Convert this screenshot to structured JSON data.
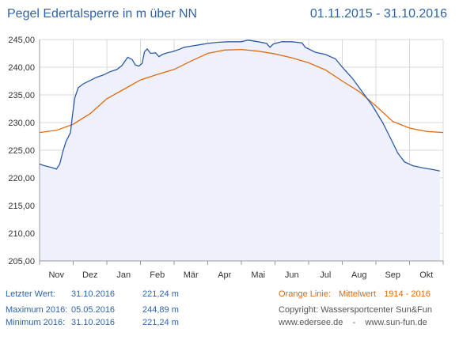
{
  "header": {
    "title": "Pegel Edertalsperre in m über NN",
    "date_range": "01.11.2015 - 31.10.2016"
  },
  "stats": {
    "last": {
      "label": "Letzter Wert:",
      "date": "31.10.2016",
      "value": "221,24 m"
    },
    "max": {
      "label": "Maximum 2016:",
      "date": "05.05.2016",
      "value": "244,89 m"
    },
    "min": {
      "label": "Minimum  2016:",
      "date": "31.10.2016",
      "value": "221,24 m"
    }
  },
  "legend": {
    "line_label": "Orange Linie:",
    "series_label": "Mittelwert",
    "period": "1914 - 2016"
  },
  "footer": {
    "copyright": "Copyright: Wassersportcenter Sun&Fun",
    "websites": "www.edersee.de    -    www.sun-fun.de"
  },
  "colors": {
    "title": "#2f63a8",
    "level_line": "#2a5aa8",
    "level_fill": "#eef1fb",
    "mean_line": "#e06a10",
    "grid": "#d8d8d8"
  },
  "chart_data": {
    "type": "line",
    "categories": [
      "Nov",
      "Dez",
      "Jan",
      "Feb",
      "Mär",
      "Apr",
      "Mai",
      "Jun",
      "Jul",
      "Aug",
      "Sep",
      "Okt"
    ],
    "ytick_labels": [
      "205,00",
      "210,00",
      "215,00",
      "220,00",
      "225,00",
      "230,00",
      "235,00",
      "240,00",
      "245,00"
    ],
    "ylim": [
      205,
      245
    ],
    "xlim": [
      0,
      12
    ],
    "grid": true,
    "series": [
      {
        "name": "",
        "values": [
          [
            0.0,
            222.5
          ],
          [
            0.15,
            222.2
          ],
          [
            0.35,
            221.9
          ],
          [
            0.5,
            221.6
          ],
          [
            0.6,
            222.5
          ],
          [
            0.68,
            224.5
          ],
          [
            0.78,
            226.5
          ],
          [
            0.92,
            228.2
          ],
          [
            0.98,
            231.5
          ],
          [
            1.05,
            234.5
          ],
          [
            1.15,
            236.3
          ],
          [
            1.3,
            237.0
          ],
          [
            1.5,
            237.6
          ],
          [
            1.7,
            238.2
          ],
          [
            1.9,
            238.6
          ],
          [
            2.1,
            239.2
          ],
          [
            2.3,
            239.6
          ],
          [
            2.45,
            240.3
          ],
          [
            2.55,
            241.2
          ],
          [
            2.62,
            241.8
          ],
          [
            2.75,
            241.4
          ],
          [
            2.85,
            240.4
          ],
          [
            2.95,
            240.2
          ],
          [
            3.05,
            240.7
          ],
          [
            3.12,
            242.8
          ],
          [
            3.2,
            243.3
          ],
          [
            3.3,
            242.5
          ],
          [
            3.45,
            242.6
          ],
          [
            3.55,
            241.9
          ],
          [
            3.65,
            242.3
          ],
          [
            3.8,
            242.6
          ],
          [
            3.95,
            242.8
          ],
          [
            4.1,
            243.1
          ],
          [
            4.3,
            243.6
          ],
          [
            4.5,
            243.8
          ],
          [
            4.8,
            244.1
          ],
          [
            5.0,
            244.3
          ],
          [
            5.3,
            244.5
          ],
          [
            5.6,
            244.6
          ],
          [
            6.0,
            244.6
          ],
          [
            6.2,
            244.89
          ],
          [
            6.5,
            244.6
          ],
          [
            6.75,
            244.3
          ],
          [
            6.85,
            243.6
          ],
          [
            6.95,
            244.2
          ],
          [
            7.2,
            244.6
          ],
          [
            7.5,
            244.6
          ],
          [
            7.8,
            244.4
          ],
          [
            7.9,
            243.6
          ],
          [
            8.2,
            242.7
          ],
          [
            8.5,
            242.3
          ],
          [
            8.8,
            241.5
          ],
          [
            9.0,
            240.0
          ],
          [
            9.3,
            238.0
          ],
          [
            9.6,
            235.5
          ],
          [
            9.9,
            233.0
          ],
          [
            10.2,
            230.0
          ],
          [
            10.45,
            227.0
          ],
          [
            10.65,
            224.5
          ],
          [
            10.85,
            222.9
          ],
          [
            11.1,
            222.2
          ],
          [
            11.4,
            221.8
          ],
          [
            11.7,
            221.5
          ],
          [
            11.9,
            221.24
          ]
        ]
      },
      {
        "name": "Mittelwert",
        "values": [
          [
            0.0,
            228.2
          ],
          [
            0.5,
            228.6
          ],
          [
            1.0,
            229.7
          ],
          [
            1.5,
            231.6
          ],
          [
            2.0,
            234.3
          ],
          [
            2.5,
            236.0
          ],
          [
            3.0,
            237.7
          ],
          [
            3.5,
            238.7
          ],
          [
            4.0,
            239.6
          ],
          [
            4.5,
            241.1
          ],
          [
            5.0,
            242.5
          ],
          [
            5.5,
            243.1
          ],
          [
            6.0,
            243.2
          ],
          [
            6.5,
            242.9
          ],
          [
            7.0,
            242.4
          ],
          [
            7.5,
            241.7
          ],
          [
            8.0,
            240.8
          ],
          [
            8.5,
            239.5
          ],
          [
            9.0,
            237.5
          ],
          [
            9.5,
            235.6
          ],
          [
            10.0,
            233.0
          ],
          [
            10.5,
            230.2
          ],
          [
            11.0,
            229.0
          ],
          [
            11.5,
            228.4
          ],
          [
            12.0,
            228.2
          ]
        ]
      }
    ]
  }
}
